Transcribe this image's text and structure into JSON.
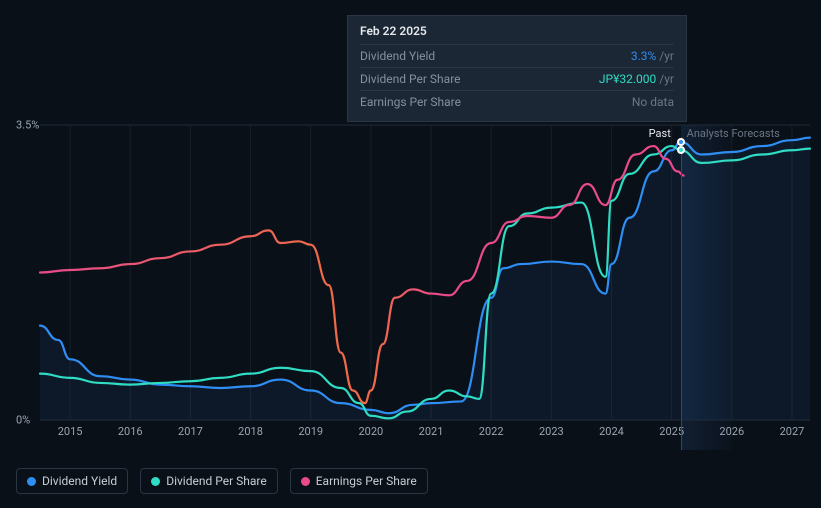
{
  "chart": {
    "type": "line",
    "background_color": "#0a1018",
    "grid_color_h": "#1e2a38",
    "grid_color_v": "#151f2b",
    "axis_text_color": "#9aa5b1",
    "axis_fontsize": 11,
    "x_min_year": 2014.5,
    "x_max_year": 2027.3,
    "years": [
      "2015",
      "2016",
      "2017",
      "2018",
      "2019",
      "2020",
      "2021",
      "2022",
      "2023",
      "2024",
      "2025",
      "2026",
      "2027"
    ],
    "y_min": 0,
    "y_max": 3.5,
    "y_ticks": [
      {
        "v": 0,
        "label": "0%"
      },
      {
        "v": 3.5,
        "label": "3.5%"
      }
    ],
    "past_boundary_year": 2025.15,
    "past_label": "Past",
    "forecast_label": "Analysts Forecasts",
    "marker_year": 2025.15,
    "marker_line_color": "#3a4656",
    "series": [
      {
        "name": "Dividend Yield",
        "color": "#2f8ef4",
        "fill": "rgba(47,142,244,0.08)",
        "width": 2.2,
        "points": [
          [
            2014.5,
            1.12
          ],
          [
            2014.8,
            0.95
          ],
          [
            2015.0,
            0.72
          ],
          [
            2015.5,
            0.52
          ],
          [
            2016.0,
            0.48
          ],
          [
            2016.5,
            0.42
          ],
          [
            2017.0,
            0.4
          ],
          [
            2017.5,
            0.38
          ],
          [
            2018.0,
            0.4
          ],
          [
            2018.5,
            0.48
          ],
          [
            2019.0,
            0.35
          ],
          [
            2019.5,
            0.2
          ],
          [
            2020.0,
            0.12
          ],
          [
            2020.3,
            0.08
          ],
          [
            2020.7,
            0.18
          ],
          [
            2021.0,
            0.2
          ],
          [
            2021.5,
            0.22
          ],
          [
            2022.0,
            1.45
          ],
          [
            2022.2,
            1.8
          ],
          [
            2022.5,
            1.85
          ],
          [
            2023.0,
            1.88
          ],
          [
            2023.5,
            1.85
          ],
          [
            2023.9,
            1.5
          ],
          [
            2024.0,
            1.85
          ],
          [
            2024.3,
            2.4
          ],
          [
            2024.7,
            2.95
          ],
          [
            2025.0,
            3.2
          ],
          [
            2025.15,
            3.3
          ],
          [
            2025.5,
            3.15
          ],
          [
            2026.0,
            3.18
          ],
          [
            2026.5,
            3.25
          ],
          [
            2027.0,
            3.32
          ],
          [
            2027.3,
            3.35
          ]
        ]
      },
      {
        "name": "Dividend Per Share",
        "color": "#2fdcc4",
        "fill": "none",
        "width": 2.2,
        "points": [
          [
            2014.5,
            0.55
          ],
          [
            2015.0,
            0.5
          ],
          [
            2015.5,
            0.44
          ],
          [
            2016.0,
            0.42
          ],
          [
            2016.5,
            0.44
          ],
          [
            2017.0,
            0.46
          ],
          [
            2017.5,
            0.5
          ],
          [
            2018.0,
            0.55
          ],
          [
            2018.5,
            0.62
          ],
          [
            2019.0,
            0.58
          ],
          [
            2019.5,
            0.38
          ],
          [
            2019.8,
            0.2
          ],
          [
            2020.0,
            0.05
          ],
          [
            2020.3,
            0.02
          ],
          [
            2020.6,
            0.1
          ],
          [
            2021.0,
            0.25
          ],
          [
            2021.3,
            0.35
          ],
          [
            2021.6,
            0.28
          ],
          [
            2021.8,
            0.25
          ],
          [
            2022.0,
            1.5
          ],
          [
            2022.3,
            2.3
          ],
          [
            2022.6,
            2.45
          ],
          [
            2023.0,
            2.52
          ],
          [
            2023.5,
            2.58
          ],
          [
            2023.9,
            1.7
          ],
          [
            2024.0,
            2.6
          ],
          [
            2024.3,
            2.92
          ],
          [
            2024.7,
            3.15
          ],
          [
            2025.0,
            3.25
          ],
          [
            2025.15,
            3.2
          ],
          [
            2025.5,
            3.05
          ],
          [
            2026.0,
            3.08
          ],
          [
            2026.5,
            3.15
          ],
          [
            2027.0,
            3.2
          ],
          [
            2027.3,
            3.22
          ]
        ]
      },
      {
        "name": "Earnings Per Share",
        "color_stops": [
          {
            "offset": 0,
            "color": "#e84a8c"
          },
          {
            "offset": 0.42,
            "color": "#f06a4a"
          },
          {
            "offset": 0.52,
            "color": "#f06a4a"
          },
          {
            "offset": 0.62,
            "color": "#e84a8c"
          },
          {
            "offset": 1,
            "color": "#e84a8c"
          }
        ],
        "fill": "none",
        "width": 2.2,
        "points": [
          [
            2014.5,
            1.75
          ],
          [
            2015.0,
            1.78
          ],
          [
            2015.5,
            1.8
          ],
          [
            2016.0,
            1.85
          ],
          [
            2016.5,
            1.92
          ],
          [
            2017.0,
            2.0
          ],
          [
            2017.5,
            2.08
          ],
          [
            2018.0,
            2.18
          ],
          [
            2018.3,
            2.25
          ],
          [
            2018.5,
            2.1
          ],
          [
            2018.8,
            2.12
          ],
          [
            2019.0,
            2.08
          ],
          [
            2019.3,
            1.6
          ],
          [
            2019.5,
            0.8
          ],
          [
            2019.7,
            0.35
          ],
          [
            2019.9,
            0.2
          ],
          [
            2020.0,
            0.35
          ],
          [
            2020.2,
            0.9
          ],
          [
            2020.4,
            1.45
          ],
          [
            2020.7,
            1.55
          ],
          [
            2021.0,
            1.5
          ],
          [
            2021.3,
            1.48
          ],
          [
            2021.6,
            1.65
          ],
          [
            2022.0,
            2.1
          ],
          [
            2022.3,
            2.35
          ],
          [
            2022.6,
            2.42
          ],
          [
            2023.0,
            2.4
          ],
          [
            2023.3,
            2.55
          ],
          [
            2023.6,
            2.8
          ],
          [
            2023.9,
            2.55
          ],
          [
            2024.1,
            2.85
          ],
          [
            2024.4,
            3.15
          ],
          [
            2024.7,
            3.25
          ],
          [
            2024.9,
            3.1
          ],
          [
            2025.1,
            2.95
          ],
          [
            2025.2,
            2.9
          ]
        ]
      }
    ]
  },
  "tooltip": {
    "date": "Feb 22 2025",
    "rows": [
      {
        "key": "Dividend Yield",
        "value": "3.3%",
        "unit": "/yr",
        "value_color": "#2f8ef4"
      },
      {
        "key": "Dividend Per Share",
        "value": "JP¥32.000",
        "unit": "/yr",
        "value_color": "#2fdcc4"
      },
      {
        "key": "Earnings Per Share",
        "value": null,
        "nodata": "No data"
      }
    ]
  },
  "legend": {
    "items": [
      {
        "label": "Dividend Yield",
        "color": "#2f8ef4"
      },
      {
        "label": "Dividend Per Share",
        "color": "#2fdcc4"
      },
      {
        "label": "Earnings Per Share",
        "color": "#e84a8c"
      }
    ]
  }
}
